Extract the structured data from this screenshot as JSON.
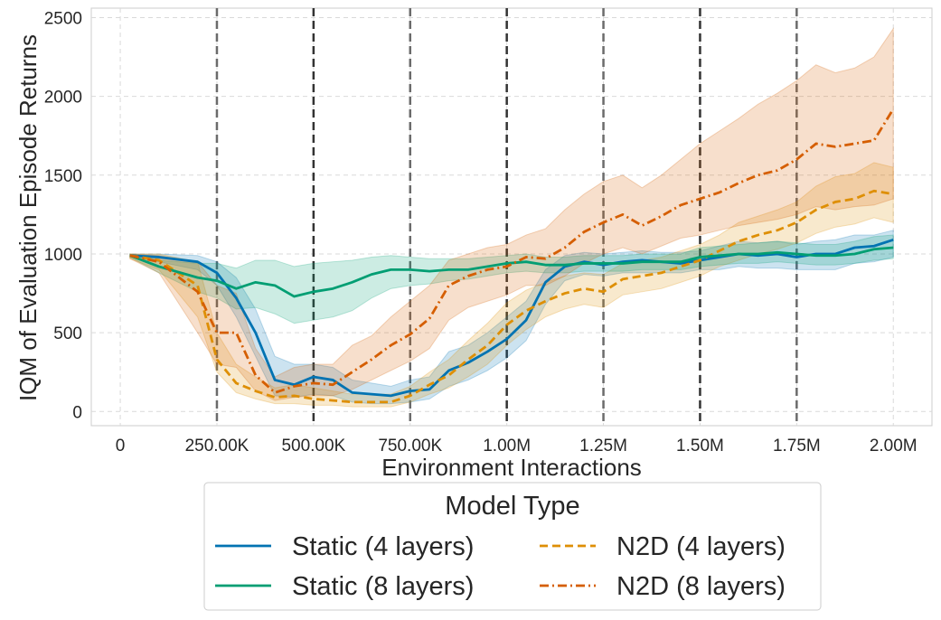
{
  "chart_data": {
    "type": "line",
    "xlabel": "Environment Interactions",
    "ylabel": "IQM of Evaluation Episode Returns",
    "xlim": [
      -75000,
      2100000
    ],
    "ylim": [
      -90,
      2560
    ],
    "grid": true,
    "x_ticks": [
      0,
      250000,
      500000,
      750000,
      1000000,
      1250000,
      1500000,
      1750000,
      2000000
    ],
    "x_tick_labels": [
      "0",
      "250.00K",
      "500.00K",
      "750.00K",
      "1.00M",
      "1.25M",
      "1.50M",
      "1.75M",
      "2.00M"
    ],
    "y_ticks": [
      0,
      500,
      1000,
      1500,
      2000,
      2500
    ],
    "y_tick_labels": [
      "0",
      "500",
      "1000",
      "1500",
      "2000",
      "2500"
    ],
    "vlines": [
      {
        "x": 250000,
        "style": "light"
      },
      {
        "x": 500000,
        "style": "dark"
      },
      {
        "x": 750000,
        "style": "light"
      },
      {
        "x": 1000000,
        "style": "dark"
      },
      {
        "x": 1250000,
        "style": "light"
      },
      {
        "x": 1500000,
        "style": "dark"
      },
      {
        "x": 1750000,
        "style": "light"
      }
    ],
    "legend": {
      "title": "Model Type",
      "placement": "bottom-center",
      "columns": 2
    },
    "x": [
      25000,
      100000,
      200000,
      250000,
      300000,
      350000,
      400000,
      450000,
      500000,
      550000,
      600000,
      650000,
      700000,
      750000,
      800000,
      850000,
      900000,
      950000,
      1000000,
      1050000,
      1100000,
      1150000,
      1200000,
      1250000,
      1300000,
      1350000,
      1400000,
      1450000,
      1500000,
      1550000,
      1600000,
      1650000,
      1700000,
      1750000,
      1800000,
      1850000,
      1900000,
      1950000,
      2000000
    ],
    "series": [
      {
        "name": "Static (4 layers)",
        "color": "#0173b2",
        "dash": "solid",
        "values": [
          990,
          980,
          950,
          880,
          720,
          500,
          200,
          170,
          220,
          200,
          120,
          110,
          100,
          130,
          140,
          260,
          310,
          380,
          460,
          580,
          820,
          920,
          950,
          930,
          950,
          960,
          950,
          940,
          960,
          980,
          1000,
          990,
          1000,
          980,
          1000,
          1000,
          1040,
          1050,
          1090
        ],
        "lower": [
          980,
          950,
          900,
          800,
          600,
          350,
          100,
          90,
          110,
          100,
          60,
          50,
          50,
          60,
          80,
          160,
          200,
          260,
          340,
          450,
          680,
          830,
          870,
          860,
          880,
          880,
          880,
          880,
          900,
          900,
          920,
          910,
          910,
          900,
          900,
          900,
          940,
          950,
          980
        ],
        "upper": [
          1000,
          1000,
          990,
          950,
          850,
          650,
          350,
          300,
          300,
          280,
          200,
          180,
          160,
          200,
          220,
          380,
          420,
          500,
          600,
          700,
          900,
          990,
          1010,
          1000,
          1010,
          1020,
          1010,
          1010,
          1020,
          1050,
          1080,
          1070,
          1080,
          1060,
          1080,
          1090,
          1120,
          1120,
          1150
        ]
      },
      {
        "name": "N2D (4 layers)",
        "color": "#de8f05",
        "dash": "dash",
        "values": [
          990,
          960,
          800,
          330,
          180,
          130,
          90,
          100,
          80,
          70,
          60,
          60,
          60,
          100,
          170,
          230,
          330,
          420,
          550,
          640,
          700,
          750,
          780,
          760,
          840,
          860,
          880,
          920,
          960,
          1020,
          1080,
          1120,
          1150,
          1200,
          1280,
          1330,
          1350,
          1400,
          1380
        ],
        "lower": [
          970,
          900,
          600,
          250,
          120,
          80,
          50,
          50,
          40,
          40,
          30,
          30,
          30,
          60,
          110,
          150,
          220,
          300,
          420,
          520,
          600,
          650,
          680,
          660,
          740,
          760,
          780,
          820,
          860,
          920,
          960,
          1000,
          1030,
          1070,
          1130,
          1170,
          1190,
          1230,
          1200
        ],
        "upper": [
          1000,
          1000,
          950,
          500,
          300,
          220,
          150,
          170,
          150,
          130,
          110,
          110,
          110,
          160,
          250,
          330,
          450,
          560,
          690,
          770,
          820,
          860,
          880,
          870,
          940,
          960,
          980,
          1020,
          1060,
          1120,
          1200,
          1240,
          1280,
          1330,
          1430,
          1490,
          1510,
          1580,
          1550
        ]
      },
      {
        "name": "Static (8 layers)",
        "color": "#029e73",
        "dash": "solid",
        "values": [
          990,
          920,
          850,
          830,
          780,
          820,
          800,
          730,
          760,
          780,
          820,
          870,
          900,
          900,
          890,
          900,
          900,
          920,
          940,
          950,
          930,
          930,
          940,
          940,
          940,
          950,
          950,
          950,
          980,
          990,
          1000,
          1000,
          1010,
          1000,
          990,
          990,
          1000,
          1030,
          1040
        ],
        "lower": [
          980,
          880,
          760,
          720,
          650,
          660,
          620,
          560,
          580,
          600,
          640,
          720,
          780,
          800,
          810,
          830,
          840,
          860,
          880,
          890,
          880,
          880,
          890,
          890,
          890,
          900,
          900,
          900,
          920,
          930,
          940,
          940,
          950,
          940,
          930,
          930,
          940,
          960,
          970
        ],
        "upper": [
          1000,
          960,
          940,
          940,
          910,
          960,
          960,
          920,
          940,
          950,
          960,
          980,
          990,
          980,
          970,
          970,
          970,
          980,
          990,
          1000,
          980,
          980,
          990,
          990,
          990,
          1000,
          1000,
          1000,
          1040,
          1050,
          1060,
          1070,
          1080,
          1070,
          1060,
          1060,
          1080,
          1110,
          1120
        ]
      },
      {
        "name": "N2D (8 layers)",
        "color": "#d55e00",
        "dash": "dashdot",
        "values": [
          990,
          950,
          760,
          500,
          500,
          230,
          120,
          160,
          180,
          170,
          250,
          330,
          420,
          490,
          590,
          800,
          860,
          900,
          920,
          980,
          970,
          1040,
          1140,
          1200,
          1250,
          1180,
          1240,
          1310,
          1350,
          1390,
          1450,
          1500,
          1530,
          1600,
          1700,
          1680,
          1700,
          1720,
          1920
        ],
        "lower": [
          970,
          880,
          500,
          300,
          280,
          130,
          70,
          90,
          100,
          100,
          140,
          200,
          260,
          320,
          400,
          580,
          660,
          700,
          740,
          800,
          800,
          860,
          940,
          1000,
          1040,
          1000,
          1050,
          1100,
          1120,
          1150,
          1180,
          1200,
          1220,
          1250,
          1300,
          1280,
          1300,
          1310,
          1350
        ],
        "upper": [
          1000,
          990,
          950,
          800,
          750,
          400,
          220,
          280,
          300,
          300,
          420,
          480,
          600,
          700,
          800,
          960,
          1000,
          1040,
          1060,
          1120,
          1160,
          1280,
          1380,
          1460,
          1500,
          1420,
          1500,
          1600,
          1700,
          1780,
          1860,
          1950,
          2020,
          2100,
          2200,
          2150,
          2180,
          2250,
          2430
        ]
      }
    ]
  }
}
